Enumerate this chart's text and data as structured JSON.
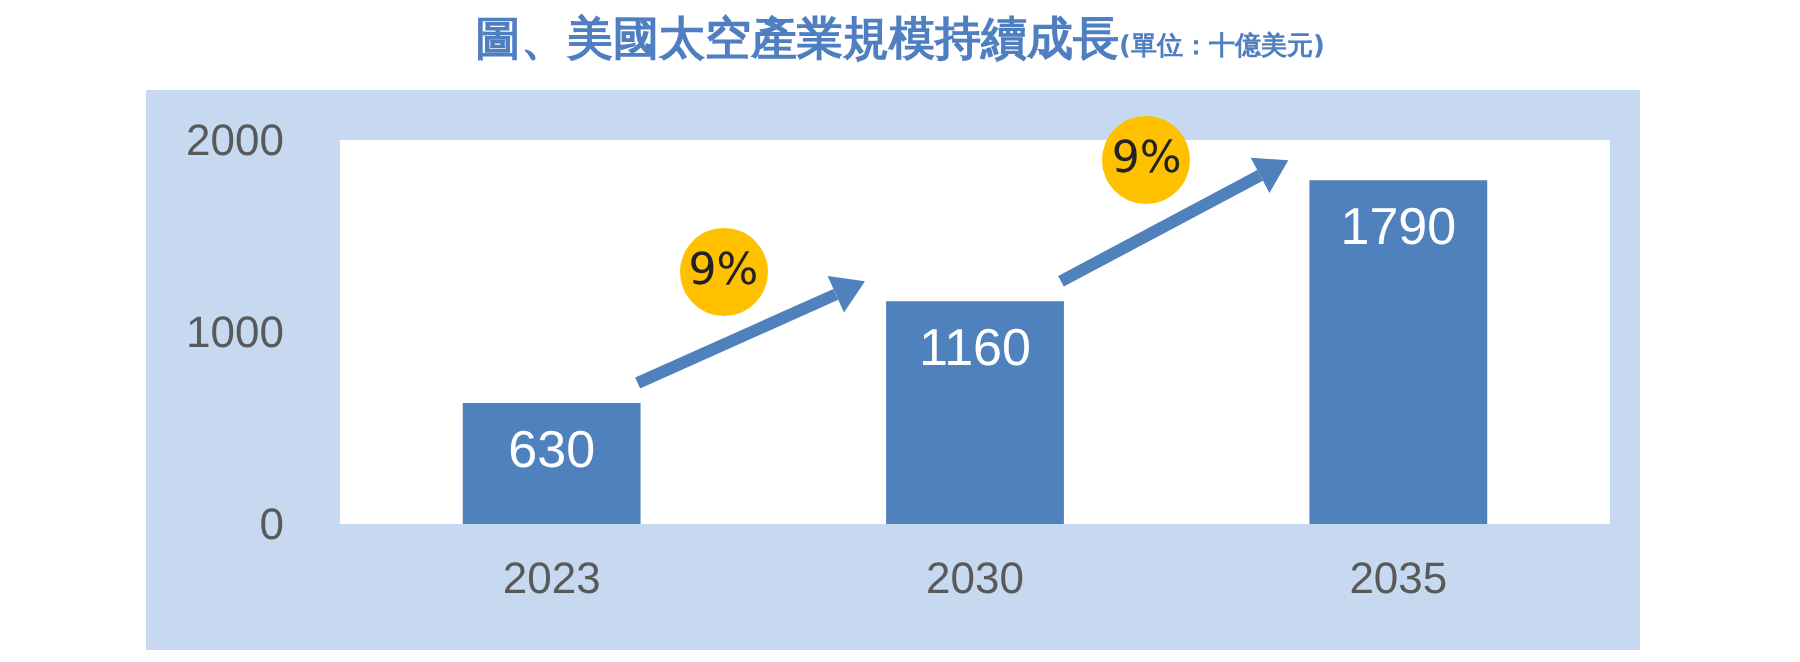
{
  "chart_data": {
    "type": "bar",
    "title": "圖、美國太空產業規模持續成長",
    "subtitle": "(單位：十億美元)",
    "categories": [
      "2023",
      "2030",
      "2035"
    ],
    "values": [
      630,
      1160,
      1790
    ],
    "color": "#4f81bd",
    "ylim": [
      0,
      2000
    ],
    "yticks": [
      0,
      1000,
      2000
    ],
    "grid": false,
    "data_labels": true,
    "annotations": [
      "9%",
      "9%"
    ]
  }
}
